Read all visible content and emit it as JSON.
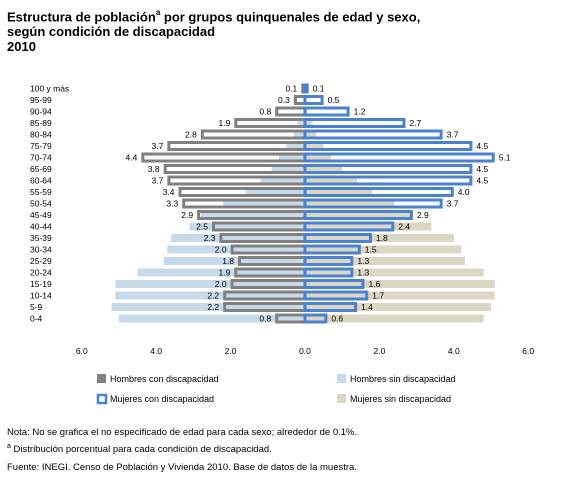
{
  "title": {
    "line1_pre": "Estructura de población",
    "line1_sup": "a",
    "line1_post": " por grupos quinquenales de edad y sexo,",
    "line2": "según condición de discapacidad",
    "line3": "2010"
  },
  "notes": {
    "note1": "Nota: No se grafica el no especificado de edad para cada sexo; alrededor de 0.1%.",
    "note2_sup": "a",
    "note2": " Distribución porcentual para cada condición de discapacidad.",
    "source": "Fuente: INEGI. Censo de Población y Vivienda 2010. Base de datos de la muestra."
  },
  "colors": {
    "hombres_con": "#808080",
    "hombres_sin": "#c8d9ea",
    "mujeres_con_fill": "#ffffff",
    "mujeres_con_outline": "#4a82cf",
    "mujeres_sin": "#dcd7c4"
  },
  "chart_data": {
    "type": "bar",
    "orientation": "horizontal",
    "categories": [
      "100 y más",
      "95-99",
      "90-94",
      "85-89",
      "80-84",
      "75-79",
      "70-74",
      "65-69",
      "60-64",
      "55-59",
      "50-54",
      "45-49",
      "40-44",
      "35-39",
      "30-34",
      "25-29",
      "20-24",
      "15-19",
      "10-14",
      "5-9",
      "0-4"
    ],
    "series": [
      {
        "name": "Hombres con discapacidad",
        "side": "left",
        "labeled": true,
        "values": [
          0.1,
          0.3,
          0.8,
          1.9,
          2.8,
          3.7,
          4.4,
          3.8,
          3.7,
          3.4,
          3.3,
          2.9,
          2.5,
          2.3,
          2.0,
          1.8,
          1.9,
          2.0,
          2.2,
          2.2,
          0.8
        ]
      },
      {
        "name": "Hombres sin discapacidad",
        "side": "left",
        "labeled": false,
        "values": [
          0.0,
          0.0,
          0.05,
          0.2,
          0.3,
          0.5,
          0.7,
          0.9,
          1.2,
          1.6,
          2.2,
          2.8,
          3.1,
          3.6,
          3.7,
          3.8,
          4.5,
          5.1,
          5.1,
          5.2,
          5.0
        ]
      },
      {
        "name": "Mujeres con discapacidad",
        "side": "right",
        "labeled": true,
        "values": [
          0.1,
          0.5,
          1.2,
          2.7,
          3.7,
          4.5,
          5.1,
          4.5,
          4.5,
          4.0,
          3.7,
          2.9,
          2.4,
          1.8,
          1.5,
          1.3,
          1.3,
          1.6,
          1.7,
          1.4,
          0.6
        ]
      },
      {
        "name": "Mujeres sin discapacidad",
        "side": "right",
        "labeled": false,
        "values": [
          0.0,
          0.0,
          0.05,
          0.2,
          0.3,
          0.5,
          0.7,
          1.0,
          1.4,
          1.8,
          2.4,
          2.9,
          3.4,
          4.0,
          4.2,
          4.3,
          4.8,
          5.1,
          5.1,
          5.0,
          4.8
        ]
      }
    ],
    "x_ticks": [
      "6.0",
      "4.0",
      "2.0",
      "0.0",
      "2.0",
      "4.0",
      "6.0"
    ],
    "xlim": [
      -6,
      6
    ],
    "legend_position": "bottom",
    "grid": false
  }
}
